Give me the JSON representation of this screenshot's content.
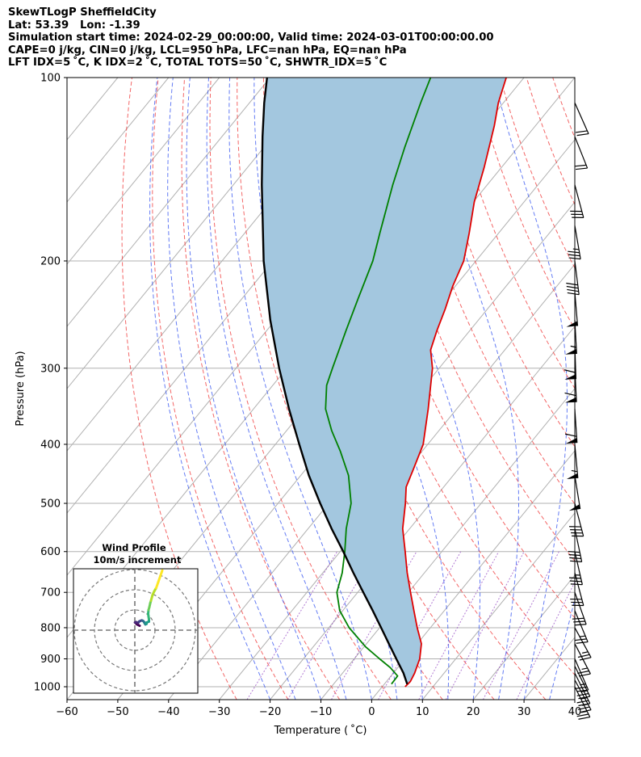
{
  "header": {
    "line1": "SkewTLogP SheffieldCity",
    "line2": "Lat: 53.39   Lon: -1.39",
    "line3": "Simulation start time: 2024-02-29_00:00:00, Valid time: 2024-03-01T00:00:00.00",
    "line4": "CAPE=0 j/kg, CIN=0 j/kg, LCL=950 hPa, LFC=nan hPa, EQ=nan hPa",
    "line5": "LFT IDX=5 ˚C, K IDX=2 ˚C, TOTAL TOTS=50 ˚C, SHWTR_IDX=5 ˚C"
  },
  "chart_data": {
    "type": "line",
    "subtype": "skewt-logp",
    "xlabel": "Temperature ( ˚C)",
    "ylabel": "Pressure (hPa)",
    "xlim": [
      -60,
      40
    ],
    "ylim": [
      1050,
      100
    ],
    "y_scale": "log",
    "x_ticks": [
      "−60",
      "−50",
      "−40",
      "−30",
      "−20",
      "−10",
      "0",
      "10",
      "20",
      "30",
      "40"
    ],
    "y_ticks": [
      "100",
      "200",
      "300",
      "400",
      "500",
      "600",
      "700",
      "800",
      "900",
      "1000"
    ],
    "grid": true,
    "series": [
      {
        "name": "temperature",
        "color": "#e00000",
        "points": [
          [
            1000,
            4.5
          ],
          [
            980,
            4.7
          ],
          [
            950,
            4.2
          ],
          [
            900,
            2.9
          ],
          [
            850,
            0.8
          ],
          [
            800,
            -2.6
          ],
          [
            750,
            -6.0
          ],
          [
            700,
            -9.6
          ],
          [
            650,
            -13.4
          ],
          [
            600,
            -17.2
          ],
          [
            550,
            -21.4
          ],
          [
            500,
            -24.9
          ],
          [
            470,
            -27.4
          ],
          [
            440,
            -28.8
          ],
          [
            400,
            -30.9
          ],
          [
            350,
            -35.6
          ],
          [
            300,
            -41.3
          ],
          [
            280,
            -44.6
          ],
          [
            260,
            -46.5
          ],
          [
            240,
            -48.3
          ],
          [
            220,
            -50.5
          ],
          [
            200,
            -52.4
          ],
          [
            180,
            -55.8
          ],
          [
            160,
            -59.8
          ],
          [
            140,
            -63.5
          ],
          [
            120,
            -68.1
          ],
          [
            110,
            -71.0
          ],
          [
            100,
            -73.5
          ]
        ]
      },
      {
        "name": "dewpoint",
        "color": "#008000",
        "points": [
          [
            990,
            1.4
          ],
          [
            960,
            1.3
          ],
          [
            930,
            -1.5
          ],
          [
            900,
            -5.0
          ],
          [
            860,
            -9.7
          ],
          [
            800,
            -16.0
          ],
          [
            750,
            -20.6
          ],
          [
            700,
            -24.1
          ],
          [
            650,
            -26.2
          ],
          [
            600,
            -29.1
          ],
          [
            550,
            -32.5
          ],
          [
            500,
            -35.6
          ],
          [
            450,
            -40.6
          ],
          [
            410,
            -46.2
          ],
          [
            380,
            -51.1
          ],
          [
            350,
            -55.8
          ],
          [
            320,
            -59.4
          ],
          [
            300,
            -61.0
          ],
          [
            260,
            -64.4
          ],
          [
            230,
            -67.2
          ],
          [
            200,
            -70.3
          ],
          [
            180,
            -73.4
          ],
          [
            150,
            -78.6
          ],
          [
            130,
            -82.3
          ],
          [
            110,
            -86.3
          ],
          [
            100,
            -88.4
          ]
        ]
      },
      {
        "name": "parcel profile",
        "color": "#000000",
        "points": [
          [
            990,
            4.5
          ],
          [
            950,
            2.0
          ],
          [
            900,
            -1.7
          ],
          [
            850,
            -5.6
          ],
          [
            800,
            -9.7
          ],
          [
            750,
            -14.1
          ],
          [
            700,
            -18.9
          ],
          [
            650,
            -24.0
          ],
          [
            600,
            -29.4
          ],
          [
            550,
            -35.4
          ],
          [
            500,
            -41.7
          ],
          [
            450,
            -48.4
          ],
          [
            400,
            -55.3
          ],
          [
            350,
            -63.0
          ],
          [
            300,
            -71.5
          ],
          [
            250,
            -81.0
          ],
          [
            200,
            -91.8
          ],
          [
            150,
            -104.4
          ],
          [
            125,
            -112.0
          ],
          [
            110,
            -117.1
          ],
          [
            100,
            -120.6
          ]
        ]
      }
    ],
    "shaded_region": {
      "between": [
        "parcel profile",
        "temperature"
      ],
      "color": "#a3c7df"
    },
    "wind_barbs": {
      "units": "knots",
      "column_temperature": 40,
      "barbs": [
        {
          "p": 1000,
          "u": -12,
          "v": 24
        },
        {
          "p": 975,
          "u": -12,
          "v": 22
        },
        {
          "p": 950,
          "u": -11,
          "v": 22
        },
        {
          "p": 925,
          "u": -11,
          "v": 22
        },
        {
          "p": 900,
          "u": -10,
          "v": 23
        },
        {
          "p": 850,
          "u": -12,
          "v": 23
        },
        {
          "p": 800,
          "u": -12,
          "v": 22
        },
        {
          "p": 750,
          "u": -10,
          "v": 24
        },
        {
          "p": 700,
          "u": -10,
          "v": 28
        },
        {
          "p": 650,
          "u": -8,
          "v": 30
        },
        {
          "p": 600,
          "u": -8,
          "v": 35
        },
        {
          "p": 550,
          "u": -8,
          "v": 38
        },
        {
          "p": 500,
          "u": -10,
          "v": 38
        },
        {
          "p": 450,
          "u": -8,
          "v": 50
        },
        {
          "p": 400,
          "u": -5,
          "v": 55
        },
        {
          "p": 350,
          "u": -4,
          "v": 60
        },
        {
          "p": 300,
          "u": -3,
          "v": 60
        },
        {
          "p": 275,
          "u": -2,
          "v": 58
        },
        {
          "p": 250,
          "u": -3,
          "v": 55
        },
        {
          "p": 225,
          "u": -4,
          "v": 48
        },
        {
          "p": 200,
          "u": -5,
          "v": 40
        },
        {
          "p": 175,
          "u": -6,
          "v": 35
        },
        {
          "p": 150,
          "u": -8,
          "v": 30
        },
        {
          "p": 125,
          "u": -8,
          "v": 20
        },
        {
          "p": 110,
          "u": -8,
          "v": 18
        }
      ]
    },
    "inset": {
      "title": "Wind Profile",
      "subtitle": "10m/s increment",
      "rings": 3,
      "trace": [
        [
          -3.2,
          1.2
        ],
        [
          -4.5,
          1.8
        ],
        [
          -5.2,
          2.4
        ],
        [
          -5.5,
          2.6
        ],
        [
          -5.0,
          2.8
        ],
        [
          -4.0,
          2.4
        ],
        [
          -3.5,
          3.0
        ],
        [
          -3.0,
          3.2
        ],
        [
          -2.2,
          3.5
        ],
        [
          -1.8,
          3.4
        ],
        [
          -1.4,
          3.2
        ],
        [
          -1.0,
          2.8
        ],
        [
          -0.8,
          2.4
        ],
        [
          -0.6,
          2.2
        ],
        [
          -0.4,
          1.8
        ],
        [
          0.2,
          2.0
        ],
        [
          0.0,
          2.5
        ],
        [
          1.4,
          3.0
        ],
        [
          1.4,
          4.0
        ],
        [
          1.2,
          5.2
        ],
        [
          1.0,
          6.4
        ],
        [
          1.2,
          8.0
        ],
        [
          1.6,
          9.2
        ],
        [
          2.0,
          10.8
        ],
        [
          2.4,
          12.0
        ],
        [
          3.2,
          14.5
        ],
        [
          4.0,
          16.0
        ],
        [
          5.0,
          17.5
        ],
        [
          6.0,
          20.0
        ],
        [
          7.0,
          22.5
        ],
        [
          8.0,
          25.0
        ]
      ]
    }
  }
}
